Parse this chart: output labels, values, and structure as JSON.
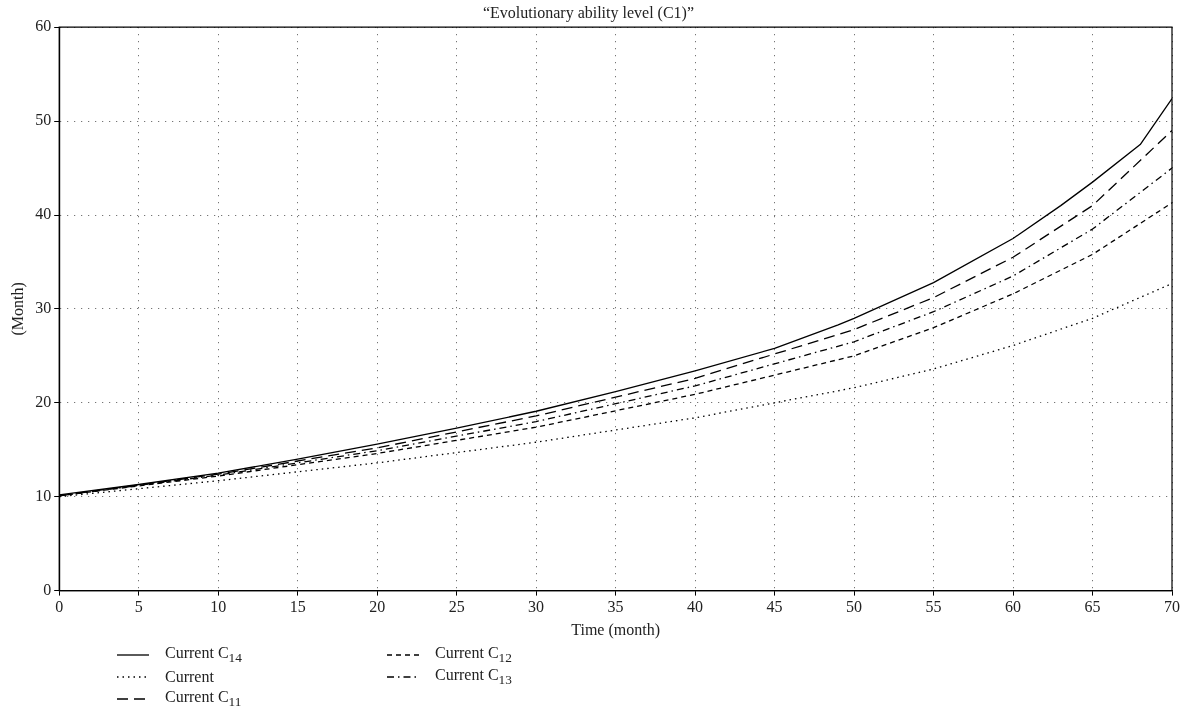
{
  "chart_data": {
    "type": "line",
    "title": "“Evolutionary ability level (C1)”",
    "xlabel": "Time (month)",
    "ylabel": "(Month)",
    "xlim": [
      0,
      70
    ],
    "xticks": [
      0,
      5,
      10,
      15,
      20,
      25,
      30,
      35,
      40,
      45,
      50,
      55,
      60,
      65,
      70
    ],
    "ylim": [
      0,
      60
    ],
    "yticks": [
      0,
      10,
      20,
      30,
      40,
      50,
      60
    ],
    "grid": true,
    "legend": "bottom",
    "marker": "none",
    "series": [
      {
        "name": "Current C$_{14}$",
        "color": "#000000",
        "line_style": "solid",
        "x": [
          0,
          5,
          10,
          15,
          20,
          25,
          30,
          35,
          40,
          45,
          49,
          50,
          55,
          60,
          63,
          65,
          68,
          70
        ],
        "values": [
          10.2,
          11.3,
          12.5,
          14.0,
          15.6,
          17.3,
          19.1,
          21.2,
          23.4,
          25.8,
          28.3,
          29.0,
          32.8,
          37.5,
          41.0,
          43.5,
          47.5,
          52.4
        ]
      },
      {
        "name": "Current",
        "color": "#000000",
        "line_style": "dotted",
        "x": [
          0,
          10,
          20,
          30,
          40,
          50,
          55,
          60,
          65,
          70
        ],
        "values": [
          10.0,
          11.7,
          13.6,
          15.8,
          18.4,
          21.6,
          23.6,
          26.1,
          29.0,
          32.7
        ]
      },
      {
        "name": "Current C$_{11}$",
        "color": "#000000",
        "line_style": "longdash",
        "x": [
          0,
          10,
          20,
          30,
          40,
          50,
          55,
          60,
          65,
          70
        ],
        "values": [
          10.1,
          12.4,
          15.2,
          18.6,
          22.6,
          27.8,
          31.2,
          35.5,
          41.0,
          49.0
        ]
      },
      {
        "name": "Current C$_{12}$",
        "color": "#000000",
        "line_style": "dashed",
        "x": [
          0,
          10,
          20,
          30,
          40,
          50,
          55,
          60,
          65,
          70
        ],
        "values": [
          10.1,
          12.2,
          14.6,
          17.4,
          20.9,
          25.0,
          28.0,
          31.6,
          35.8,
          41.3
        ]
      },
      {
        "name": "Current C$_{13}$",
        "color": "#000000",
        "line_style": "dashdot",
        "x": [
          0,
          10,
          20,
          30,
          40,
          50,
          55,
          60,
          65,
          70
        ],
        "values": [
          10.1,
          12.3,
          14.9,
          18.0,
          21.8,
          26.5,
          29.7,
          33.5,
          38.5,
          45.0
        ]
      }
    ]
  }
}
